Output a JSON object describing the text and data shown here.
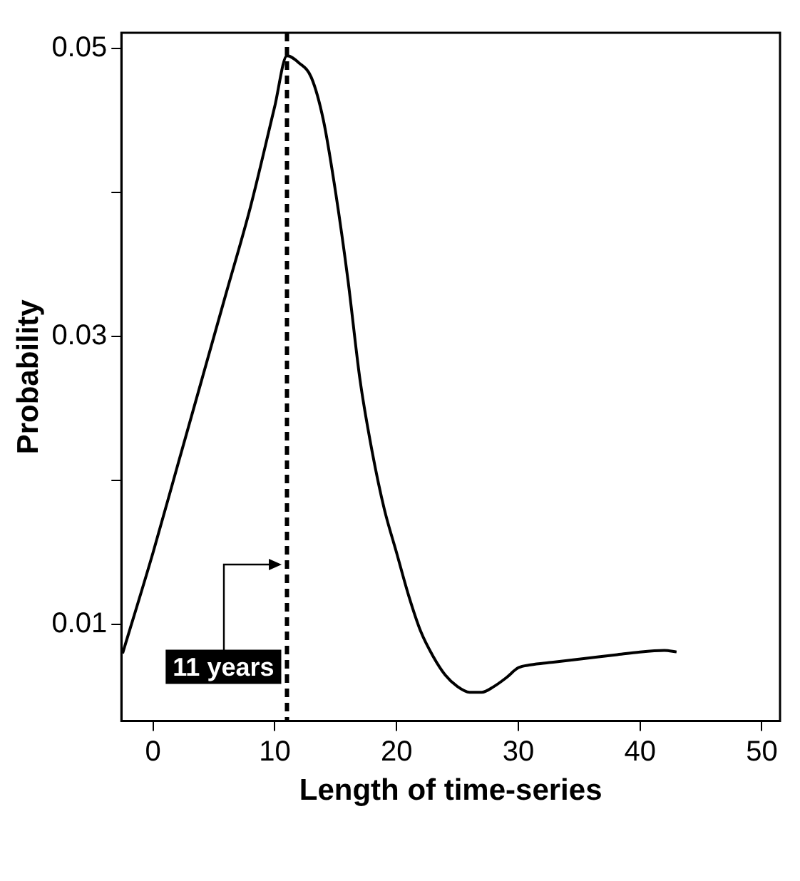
{
  "chart_data": {
    "type": "line",
    "xlabel": "Length of time-series",
    "ylabel": "Probability",
    "x": [
      -2.5,
      0,
      2,
      4,
      6,
      8,
      10,
      11,
      12,
      13,
      14,
      15,
      16,
      17,
      18,
      19,
      20,
      21,
      22,
      23,
      24,
      25,
      26,
      27,
      28,
      29,
      30,
      31,
      33,
      35,
      38,
      40,
      42,
      43
    ],
    "values": [
      0.008,
      0.015,
      0.021,
      0.027,
      0.033,
      0.039,
      0.046,
      0.0495,
      0.049,
      0.048,
      0.045,
      0.04,
      0.034,
      0.027,
      0.022,
      0.018,
      0.015,
      0.012,
      0.0095,
      0.0078,
      0.0065,
      0.0057,
      0.0053,
      0.0053,
      0.0057,
      0.0063,
      0.007,
      0.0072,
      0.0074,
      0.0076,
      0.0079,
      0.0081,
      0.0082,
      0.0081
    ],
    "color": "#000000",
    "marker": "none",
    "line_style": "solid",
    "xlim": [
      -2.6,
      51.5
    ],
    "xticks": [
      0,
      10,
      20,
      30,
      40,
      50
    ],
    "ylim": [
      0.0033,
      0.0511
    ],
    "yticks": [
      0.01,
      {
        "value": 0.02,
        "label": null
      },
      0.03,
      {
        "value": 0.04,
        "label": null
      },
      0.05
    ],
    "grid": false,
    "legend": false,
    "ref_lines": [
      {
        "axis": "x",
        "value": 11,
        "label": "11 years",
        "color": "#000000",
        "line_style": "dashed"
      }
    ]
  }
}
